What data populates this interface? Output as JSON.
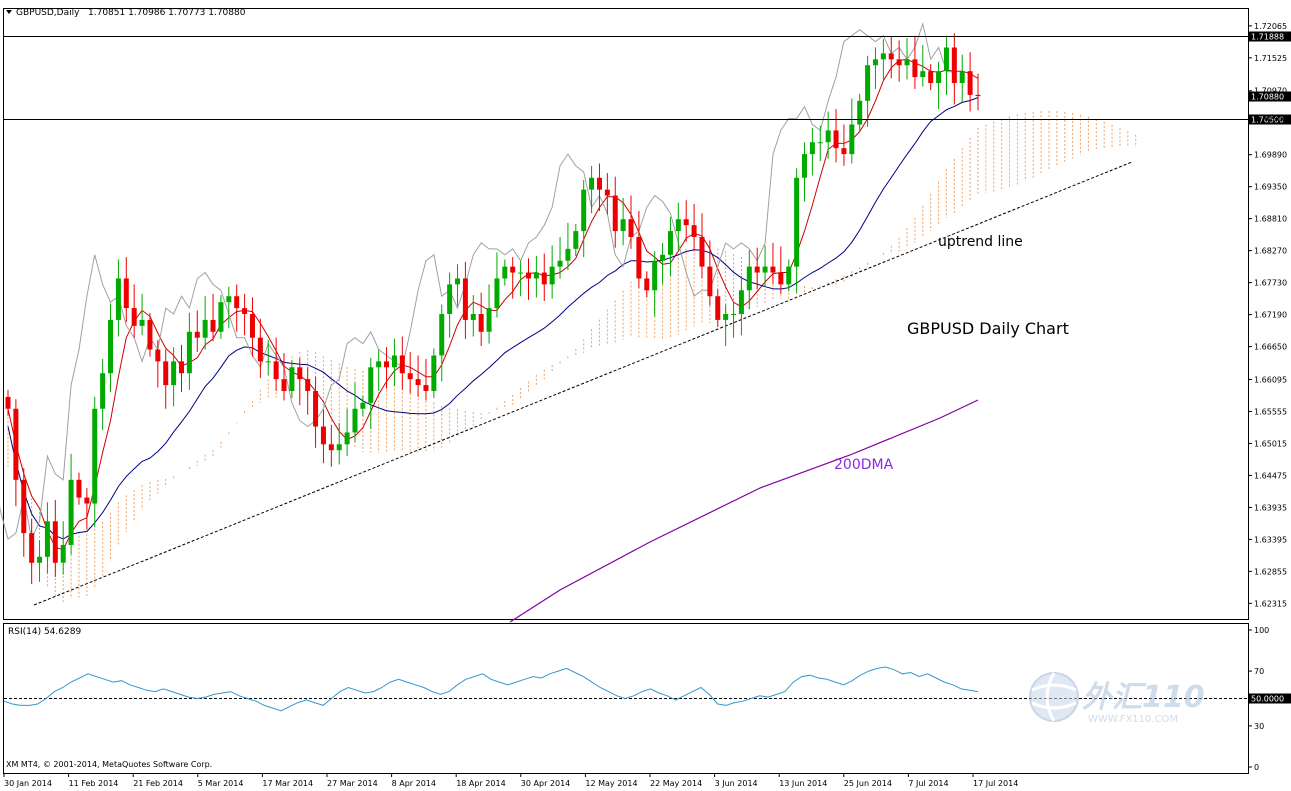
{
  "main_header": {
    "symbol_label": "GBPUSD,Daily",
    "ohlc": "1.70851 1.70986 1.70773 1.70880"
  },
  "rsi_header": {
    "label": "RSI(14) 54.6289"
  },
  "copyright": "XM MT4, © 2001-2014, MetaQuotes Software Corp.",
  "annotations": {
    "uptrend": "uptrend line",
    "chart_title": "GBPUSD Daily Chart",
    "dma": "200DMA"
  },
  "watermark": {
    "text": "外汇110",
    "url": "WWW.FX110.COM"
  },
  "colors": {
    "bull": "#00aa00",
    "bear": "#ee0000",
    "tenkan": "#cc0000",
    "kijun": "#000080",
    "chikou": "#a0a0a0",
    "cloud": "#f0a060",
    "dma": "#8000a0",
    "rsi": "#3399cc",
    "annotation_purple": "#8a2be2"
  },
  "chart_data": {
    "type": "candlestick",
    "price_axis": {
      "ticks": [
        "1.72065",
        "1.71525",
        "1.70970",
        "1.70500",
        "1.69890",
        "1.69350",
        "1.68810",
        "1.68270",
        "1.67730",
        "1.67190",
        "1.66650",
        "1.66095",
        "1.65555",
        "1.65015",
        "1.64475",
        "1.63935",
        "1.63395",
        "1.62855",
        "1.62315"
      ],
      "range": [
        1.6205,
        1.7235
      ],
      "marked_levels": [
        {
          "label": "1.71888",
          "value": 1.71888
        },
        {
          "label": "1.70880",
          "value": 1.7088
        },
        {
          "label": "1.70500",
          "value": 1.705
        }
      ]
    },
    "date_axis": [
      "30 Jan 2014",
      "11 Feb 2014",
      "21 Feb 2014",
      "5 Mar 2014",
      "17 Mar 2014",
      "27 Mar 2014",
      "8 Apr 2014",
      "18 Apr 2014",
      "30 Apr 2014",
      "12 May 2014",
      "22 May 2014",
      "3 Jun 2014",
      "13 Jun 2014",
      "25 Jun 2014",
      "7 Jul 2014",
      "17 Jul 2014"
    ],
    "rsi_axis": {
      "ticks": [
        "100",
        "70",
        "50.0000",
        "30",
        "0"
      ],
      "range": [
        0,
        100
      ],
      "level": 50
    },
    "closes": [
      1.656,
      1.644,
      1.635,
      1.63,
      1.631,
      1.637,
      1.63,
      1.633,
      1.644,
      1.641,
      1.64,
      1.656,
      1.662,
      1.671,
      1.678,
      1.673,
      1.67,
      1.671,
      1.666,
      1.664,
      1.66,
      1.664,
      1.662,
      1.669,
      1.668,
      1.671,
      1.669,
      1.674,
      1.675,
      1.673,
      1.672,
      1.668,
      1.664,
      1.664,
      1.661,
      1.659,
      1.663,
      1.661,
      1.659,
      1.653,
      1.65,
      1.649,
      1.65,
      1.652,
      1.656,
      1.657,
      1.663,
      1.664,
      1.663,
      1.665,
      1.662,
      1.661,
      1.66,
      1.659,
      1.665,
      1.672,
      1.677,
      1.678,
      1.671,
      1.672,
      1.669,
      1.673,
      1.678,
      1.68,
      1.679,
      1.679,
      1.678,
      1.679,
      1.677,
      1.68,
      1.681,
      1.683,
      1.686,
      1.693,
      1.695,
      1.693,
      1.692,
      1.686,
      1.688,
      1.685,
      1.678,
      1.676,
      1.681,
      1.682,
      1.686,
      1.688,
      1.687,
      1.685,
      1.68,
      1.675,
      1.671,
      1.672,
      1.672,
      1.676,
      1.68,
      1.679,
      1.68,
      1.679,
      1.677,
      1.68,
      1.695,
      1.699,
      1.701,
      1.701,
      1.703,
      1.7,
      1.699,
      1.704,
      1.708,
      1.714,
      1.715,
      1.716,
      1.715,
      1.714,
      1.715,
      1.712,
      1.713,
      1.711,
      1.713,
      1.717,
      1.711,
      1.713,
      1.709,
      1.7088
    ],
    "rsi_values": [
      48,
      46,
      45,
      45,
      46,
      50,
      55,
      58,
      62,
      65,
      68,
      66,
      64,
      62,
      63,
      60,
      58,
      56,
      55,
      57,
      55,
      53,
      51,
      50,
      51,
      53,
      54,
      55,
      52,
      50,
      48,
      45,
      43,
      41,
      44,
      47,
      49,
      47,
      45,
      50,
      55,
      58,
      56,
      54,
      55,
      58,
      62,
      64,
      62,
      60,
      58,
      55,
      53,
      55,
      60,
      64,
      66,
      68,
      64,
      62,
      60,
      62,
      64,
      66,
      65,
      68,
      70,
      72,
      69,
      66,
      62,
      58,
      55,
      52,
      50,
      52,
      55,
      57,
      54,
      52,
      49,
      52,
      55,
      58,
      53,
      46,
      45,
      47,
      48,
      50,
      52,
      51,
      53,
      55,
      62,
      66,
      67,
      65,
      64,
      62,
      60,
      63,
      67,
      70,
      72,
      73,
      71,
      68,
      69,
      66,
      68,
      65,
      62,
      60,
      57,
      56,
      55
    ],
    "dma_200": [
      [
        510,
        622
      ],
      [
        560,
        590
      ],
      [
        650,
        542
      ],
      [
        760,
        488
      ],
      [
        850,
        455
      ],
      [
        940,
        418
      ],
      [
        978,
        400
      ]
    ]
  }
}
